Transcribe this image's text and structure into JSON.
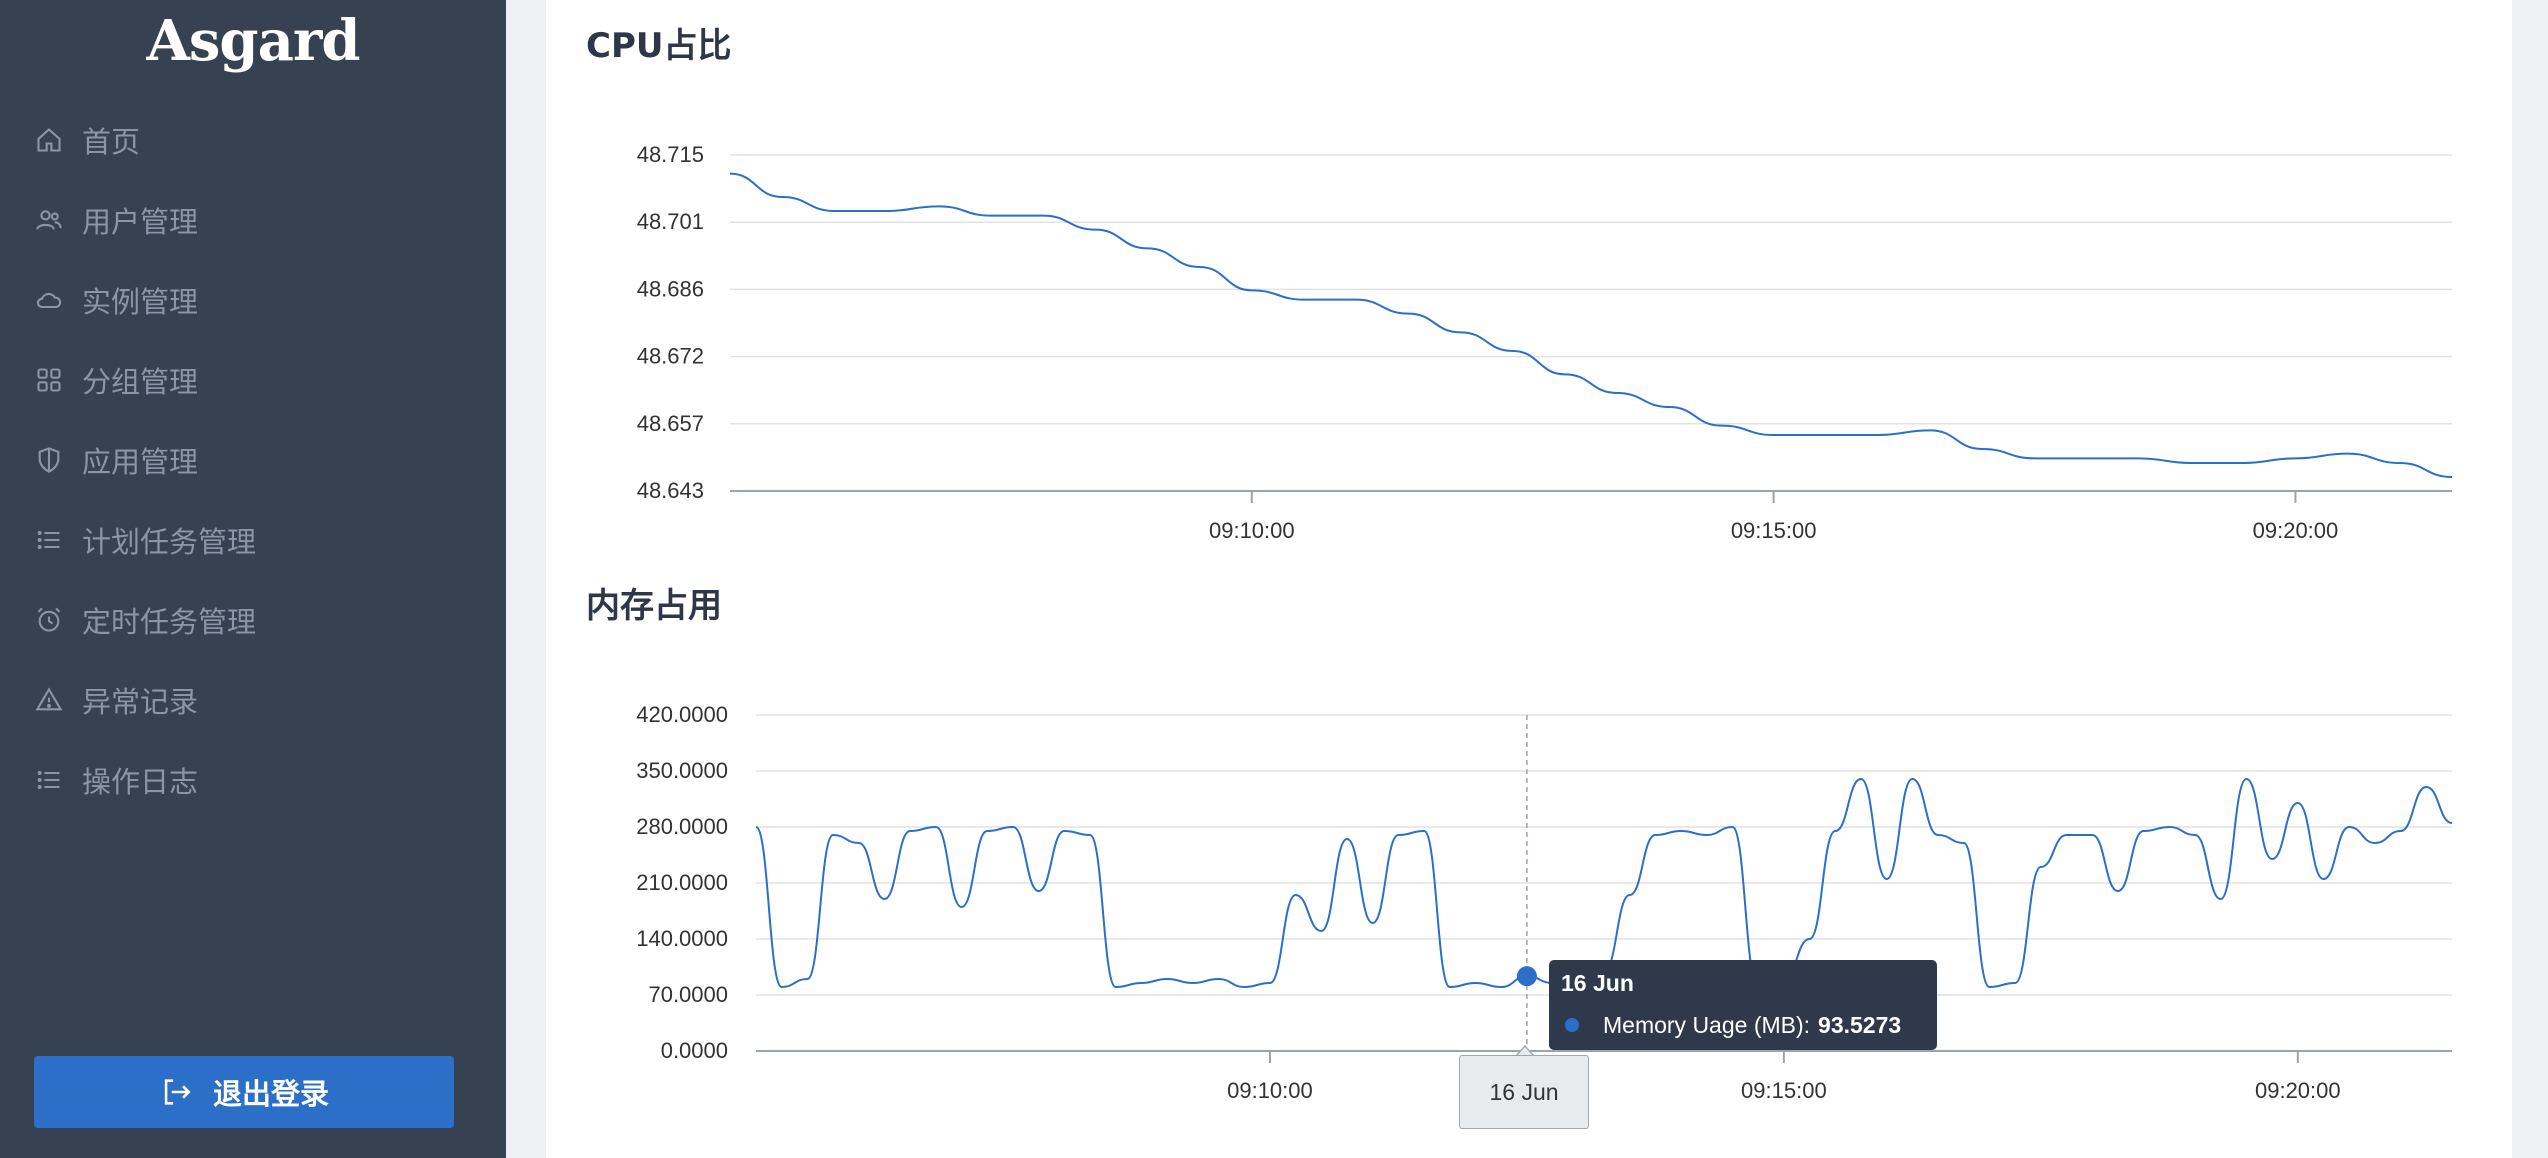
{
  "app": {
    "logo": "Asgard"
  },
  "sidebar": {
    "items": [
      {
        "label": "首页",
        "icon": "home-icon"
      },
      {
        "label": "用户管理",
        "icon": "users-icon"
      },
      {
        "label": "实例管理",
        "icon": "cloud-icon"
      },
      {
        "label": "分组管理",
        "icon": "grid-icon"
      },
      {
        "label": "应用管理",
        "icon": "shield-icon"
      },
      {
        "label": "计划任务管理",
        "icon": "list-icon"
      },
      {
        "label": "定时任务管理",
        "icon": "alarm-clock-icon"
      },
      {
        "label": "异常记录",
        "icon": "warning-icon"
      },
      {
        "label": "操作日志",
        "icon": "list-icon"
      }
    ],
    "logout_label": "退出登录"
  },
  "colors": {
    "sidebar_bg": "#364152",
    "accent": "#2b6fc8",
    "line": "#2b6fc8"
  },
  "tooltip": {
    "title": "16 Jun",
    "series": "Memory Uage (MB):",
    "value": "93.5273",
    "x_hover_label": "16 Jun"
  },
  "chart_data": [
    {
      "type": "line",
      "title": "CPU占比",
      "y_ticks": [
        "48.715",
        "48.701",
        "48.686",
        "48.672",
        "48.657",
        "48.643"
      ],
      "x_ticks": [
        "09:10:00",
        "09:15:00",
        "09:20:00"
      ],
      "ylim": [
        48.643,
        48.715
      ],
      "xlim": [
        "09:05:00",
        "09:21:30"
      ],
      "grid": true,
      "series": [
        {
          "x": [
            "09:05:00",
            "09:05:30",
            "09:06:00",
            "09:06:30",
            "09:07:00",
            "09:07:30",
            "09:08:00",
            "09:08:30",
            "09:09:00",
            "09:09:30",
            "09:10:00",
            "09:10:30",
            "09:11:00",
            "09:11:30",
            "09:12:00",
            "09:12:30",
            "09:13:00",
            "09:13:30",
            "09:14:00",
            "09:14:30",
            "09:15:00",
            "09:15:30",
            "09:16:00",
            "09:16:30",
            "09:17:00",
            "09:17:30",
            "09:18:00",
            "09:18:30",
            "09:19:00",
            "09:19:30",
            "09:20:00",
            "09:20:30",
            "09:21:00",
            "09:21:30"
          ],
          "values": [
            48.711,
            48.706,
            48.703,
            48.703,
            48.704,
            48.702,
            48.702,
            48.699,
            48.695,
            48.691,
            48.686,
            48.684,
            48.684,
            48.681,
            48.677,
            48.673,
            48.668,
            48.664,
            48.661,
            48.657,
            48.655,
            48.655,
            48.655,
            48.656,
            48.652,
            48.65,
            48.65,
            48.65,
            48.649,
            48.649,
            48.65,
            48.651,
            48.649,
            48.646
          ]
        }
      ]
    },
    {
      "type": "line",
      "title": "内存占用",
      "y_ticks": [
        "420.0000",
        "350.0000",
        "280.0000",
        "210.0000",
        "140.0000",
        "70.0000",
        "0.0000"
      ],
      "x_ticks": [
        "09:10:00",
        "09:15:00",
        "09:20:00"
      ],
      "ylim": [
        0,
        420
      ],
      "xlim": [
        "09:05:00",
        "09:21:30"
      ],
      "grid": true,
      "series": [
        {
          "name": "Memory Uage (MB)",
          "x": [
            "09:05:00",
            "09:05:15",
            "09:05:30",
            "09:05:45",
            "09:06:00",
            "09:06:15",
            "09:06:30",
            "09:06:45",
            "09:07:00",
            "09:07:15",
            "09:07:30",
            "09:07:45",
            "09:08:00",
            "09:08:15",
            "09:08:30",
            "09:08:45",
            "09:09:00",
            "09:09:15",
            "09:09:30",
            "09:09:45",
            "09:10:00",
            "09:10:15",
            "09:10:30",
            "09:10:45",
            "09:11:00",
            "09:11:15",
            "09:11:30",
            "09:11:45",
            "09:12:00",
            "09:12:15",
            "09:12:30",
            "09:12:45",
            "09:13:00",
            "09:13:15",
            "09:13:30",
            "09:13:45",
            "09:14:00",
            "09:14:15",
            "09:14:30",
            "09:14:45",
            "09:15:00",
            "09:15:15",
            "09:15:30",
            "09:15:45",
            "09:16:00",
            "09:16:15",
            "09:16:30",
            "09:16:45",
            "09:17:00",
            "09:17:15",
            "09:17:30",
            "09:17:45",
            "09:18:00",
            "09:18:15",
            "09:18:30",
            "09:18:45",
            "09:19:00",
            "09:19:15",
            "09:19:30",
            "09:19:45",
            "09:20:00",
            "09:20:15",
            "09:20:30",
            "09:20:45",
            "09:21:00",
            "09:21:15",
            "09:21:30"
          ],
          "values": [
            280,
            80,
            90,
            270,
            260,
            190,
            275,
            280,
            180,
            275,
            280,
            200,
            275,
            270,
            80,
            85,
            90,
            85,
            90,
            80,
            85,
            195,
            150,
            265,
            160,
            270,
            275,
            80,
            85,
            80,
            93.5273,
            85,
            95,
            100,
            195,
            270,
            275,
            270,
            280,
            80,
            90,
            140,
            275,
            340,
            215,
            340,
            270,
            260,
            80,
            85,
            230,
            270,
            270,
            200,
            275,
            280,
            270,
            190,
            340,
            240,
            310,
            215,
            280,
            260,
            275,
            330,
            285
          ]
        }
      ]
    }
  ]
}
